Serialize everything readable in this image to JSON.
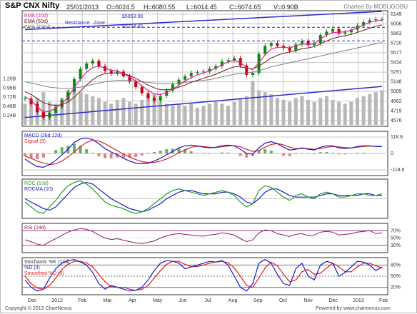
{
  "header": {
    "title": "S&P CNX Nifty",
    "date": "25/01/2013",
    "open": "O=6024.5",
    "high": "H=6080.55",
    "low": "L=6014.45",
    "close": "C=6074.65",
    "volume": "V=0.90B",
    "charted_by": "Charted By MOBUGOBU"
  },
  "footer": {
    "copyright": "Copyright © 2013 ChartNexus",
    "powered": "Powered by www.chartnexus.com"
  },
  "colors": {
    "background": "#ffffff",
    "grid": "#c8c8c8",
    "candle_up": "#0a8a0a",
    "candle_down": "#cc0000",
    "ema20": "#e0209a",
    "ema50": "#6a1a1a",
    "ema200": "#808080",
    "trend_line": "#2c2cd0",
    "volume": "#b8b8b8",
    "macd": "#1a1ad0",
    "signal": "#e02020",
    "roc": "#20a020",
    "rocma": "#1a1ad0",
    "rsi": "#8a1a5a",
    "stoch_k": "#1a1ad0",
    "stoch_d": "#e02020",
    "smoothed_d": "#e02020"
  },
  "chart_data": [
    {
      "type": "candlestick",
      "panel": "price",
      "x_ticks": [
        "Dec",
        "2012",
        "Feb",
        "Mar",
        "Apr",
        "May",
        "Jun",
        "Jul",
        "Aug",
        "Sep",
        "Oct",
        "Nov",
        "Dec",
        "2013",
        "Feb"
      ],
      "y_ticks": [
        6149,
        6006,
        5863,
        5720,
        5577,
        5434,
        5291,
        5148,
        5005,
        4862,
        4719,
        4576
      ],
      "ylim": [
        4490,
        6200
      ],
      "volume_ticks": [
        "1.20B",
        "0.96B",
        "0.72B",
        "0.48B",
        "0.24B"
      ],
      "legend": [
        "EMA (20d)",
        "EMA (50d)",
        "EMA (200d)"
      ],
      "annotations": [
        "Resistance",
        "Zone",
        "$5953.98",
        "$5754.45"
      ],
      "resistance_levels": [
        5953.98,
        5754.45
      ],
      "trend_channel": {
        "upper": [
          [
            0,
            5920
          ],
          [
            58,
            6190
          ]
        ],
        "lower": [
          [
            0,
            4620
          ],
          [
            58,
            5080
          ]
        ]
      },
      "close": [
        4900,
        4820,
        4700,
        4620,
        4690,
        4770,
        4880,
        5000,
        5190,
        5340,
        5420,
        5460,
        5380,
        5310,
        5270,
        5300,
        5230,
        5150,
        5070,
        4980,
        4910,
        4870,
        4940,
        5020,
        5110,
        5180,
        5230,
        5280,
        5290,
        5300,
        5340,
        5380,
        5450,
        5470,
        5500,
        5390,
        5250,
        5280,
        5560,
        5680,
        5720,
        5680,
        5650,
        5610,
        5700,
        5750,
        5690,
        5720,
        5840,
        5890,
        5930,
        5860,
        5880,
        5920,
        5980,
        6030,
        6060,
        6074,
        6074
      ],
      "ema20": [
        4930,
        4870,
        4780,
        4700,
        4710,
        4760,
        4830,
        4920,
        5060,
        5190,
        5290,
        5360,
        5380,
        5350,
        5320,
        5310,
        5270,
        5220,
        5160,
        5090,
        5020,
        4970,
        4960,
        4990,
        5040,
        5100,
        5160,
        5210,
        5250,
        5280,
        5310,
        5350,
        5400,
        5440,
        5470,
        5430,
        5360,
        5330,
        5430,
        5550,
        5630,
        5660,
        5660,
        5650,
        5680,
        5710,
        5700,
        5710,
        5780,
        5840,
        5880,
        5880,
        5890,
        5910,
        5950,
        5990,
        6030,
        6050,
        6060
      ],
      "ema50": [
        5000,
        4960,
        4900,
        4840,
        4810,
        4800,
        4810,
        4850,
        4920,
        5010,
        5100,
        5180,
        5240,
        5270,
        5280,
        5280,
        5270,
        5240,
        5200,
        5150,
        5100,
        5060,
        5030,
        5030,
        5040,
        5070,
        5100,
        5140,
        5170,
        5200,
        5230,
        5260,
        5300,
        5340,
        5370,
        5370,
        5350,
        5340,
        5380,
        5440,
        5500,
        5540,
        5570,
        5590,
        5610,
        5640,
        5650,
        5670,
        5710,
        5750,
        5790,
        5810,
        5830,
        5850,
        5880,
        5910,
        5940,
        5970,
        5990
      ],
      "ema200": [
        5150,
        5130,
        5110,
        5090,
        5070,
        5060,
        5050,
        5050,
        5060,
        5070,
        5090,
        5110,
        5130,
        5150,
        5160,
        5170,
        5170,
        5170,
        5160,
        5150,
        5140,
        5130,
        5120,
        5120,
        5120,
        5130,
        5140,
        5150,
        5160,
        5170,
        5180,
        5200,
        5220,
        5240,
        5260,
        5270,
        5280,
        5290,
        5310,
        5340,
        5370,
        5390,
        5410,
        5430,
        5450,
        5470,
        5490,
        5510,
        5530,
        5550,
        5570,
        5590,
        5610,
        5630,
        5650,
        5670,
        5690,
        5710,
        5730
      ],
      "volume_B": [
        0.55,
        0.62,
        0.7,
        0.85,
        0.6,
        0.55,
        0.7,
        0.9,
        0.95,
        0.85,
        0.8,
        0.75,
        0.7,
        0.6,
        0.55,
        0.65,
        0.7,
        0.6,
        0.55,
        0.65,
        0.75,
        0.8,
        0.6,
        0.55,
        0.5,
        0.55,
        0.5,
        0.55,
        0.45,
        0.5,
        0.55,
        0.6,
        0.55,
        0.5,
        0.6,
        0.7,
        0.75,
        1.15,
        0.9,
        0.85,
        0.8,
        0.7,
        0.65,
        0.6,
        0.7,
        0.75,
        0.65,
        0.6,
        0.7,
        0.75,
        0.65,
        0.6,
        0.55,
        0.6,
        0.7,
        0.75,
        0.8,
        0.85,
        0.9
      ]
    },
    {
      "type": "line",
      "panel": "macd",
      "legend": [
        "MACD (26d,12d)",
        "Signal (9)"
      ],
      "y_ticks": [
        118.8,
        0,
        -118.8
      ],
      "ylim": [
        -160,
        160
      ],
      "macd": [
        -40,
        -70,
        -95,
        -100,
        -80,
        -50,
        -10,
        30,
        80,
        105,
        110,
        100,
        70,
        35,
        10,
        -10,
        -35,
        -55,
        -70,
        -75,
        -70,
        -55,
        -35,
        -10,
        15,
        40,
        55,
        60,
        55,
        45,
        40,
        45,
        55,
        60,
        55,
        30,
        0,
        -5,
        40,
        75,
        85,
        70,
        45,
        25,
        30,
        40,
        30,
        25,
        45,
        55,
        55,
        40,
        35,
        40,
        50,
        55,
        55,
        50,
        50
      ],
      "signal": [
        -20,
        -35,
        -55,
        -70,
        -80,
        -75,
        -55,
        -25,
        10,
        50,
        80,
        95,
        90,
        70,
        45,
        20,
        -5,
        -25,
        -45,
        -60,
        -65,
        -65,
        -55,
        -40,
        -20,
        5,
        25,
        45,
        52,
        50,
        45,
        43,
        48,
        54,
        56,
        48,
        30,
        15,
        20,
        45,
        65,
        72,
        62,
        45,
        35,
        36,
        34,
        30,
        36,
        45,
        50,
        47,
        42,
        40,
        45,
        50,
        53,
        52,
        51
      ]
    },
    {
      "type": "line",
      "panel": "roc",
      "legend": [
        "ROC (10d)",
        "ROCMA (10)"
      ],
      "ylim": [
        -12,
        12
      ],
      "roc": [
        -2,
        -5,
        -8,
        -9,
        -5,
        -1,
        4,
        8,
        10,
        11,
        9,
        6,
        2,
        -2,
        -4,
        -5,
        -6,
        -8,
        -9,
        -8,
        -6,
        -3,
        0,
        3,
        5,
        6,
        5,
        4,
        3,
        2,
        3,
        4,
        5,
        4,
        2,
        -2,
        -5,
        -3,
        5,
        8,
        7,
        4,
        1,
        -1,
        2,
        3,
        1,
        0,
        3,
        4,
        3,
        1,
        1,
        2,
        3,
        3,
        2,
        2,
        3
      ],
      "rocma": [
        0,
        -2,
        -4,
        -6,
        -7,
        -5,
        -1,
        3,
        7,
        9,
        10,
        9,
        6,
        3,
        0,
        -2,
        -4,
        -6,
        -7,
        -8,
        -7,
        -5,
        -3,
        0,
        2,
        4,
        5,
        5,
        4,
        3,
        3,
        3,
        4,
        4,
        3,
        1,
        -2,
        -3,
        0,
        4,
        6,
        6,
        4,
        2,
        1,
        1,
        1,
        1,
        2,
        3,
        3,
        2,
        2,
        2,
        2,
        3,
        3,
        2,
        2
      ]
    },
    {
      "type": "line",
      "panel": "rsi",
      "legend": [
        "RSI (14d)"
      ],
      "y_ticks": [
        "70%",
        "50%",
        "30%"
      ],
      "ylim": [
        10,
        90
      ],
      "rsi": [
        45,
        40,
        33,
        30,
        40,
        48,
        58,
        66,
        72,
        76,
        74,
        68,
        58,
        50,
        46,
        48,
        44,
        40,
        37,
        35,
        38,
        42,
        50,
        56,
        60,
        62,
        60,
        58,
        56,
        55,
        58,
        60,
        64,
        62,
        58,
        48,
        40,
        45,
        64,
        72,
        70,
        62,
        58,
        54,
        60,
        62,
        56,
        58,
        66,
        68,
        66,
        58,
        60,
        62,
        66,
        68,
        70,
        62,
        64
      ]
    },
    {
      "type": "line",
      "panel": "stochastic",
      "legend": [
        "Stochastic %K (14d)",
        "%D (3)",
        "Smoothed %D (3)"
      ],
      "y_ticks": [
        "80%",
        "50%",
        "20%"
      ],
      "ylim": [
        0,
        100
      ],
      "k": [
        40,
        20,
        10,
        15,
        45,
        70,
        85,
        92,
        95,
        88,
        80,
        60,
        30,
        15,
        25,
        20,
        15,
        10,
        12,
        20,
        40,
        65,
        85,
        92,
        90,
        85,
        70,
        75,
        80,
        85,
        90,
        88,
        92,
        80,
        50,
        20,
        10,
        30,
        85,
        95,
        85,
        55,
        30,
        25,
        70,
        85,
        50,
        40,
        80,
        90,
        85,
        50,
        60,
        75,
        90,
        88,
        80,
        65,
        75
      ],
      "d": [
        50,
        30,
        18,
        15,
        25,
        45,
        68,
        82,
        90,
        90,
        86,
        75,
        55,
        35,
        22,
        20,
        20,
        15,
        12,
        15,
        25,
        45,
        65,
        82,
        90,
        90,
        82,
        76,
        76,
        80,
        85,
        88,
        90,
        86,
        72,
        50,
        25,
        20,
        45,
        72,
        88,
        78,
        55,
        35,
        40,
        62,
        68,
        55,
        58,
        72,
        85,
        75,
        62,
        62,
        75,
        85,
        85,
        78,
        72
      ]
    }
  ]
}
